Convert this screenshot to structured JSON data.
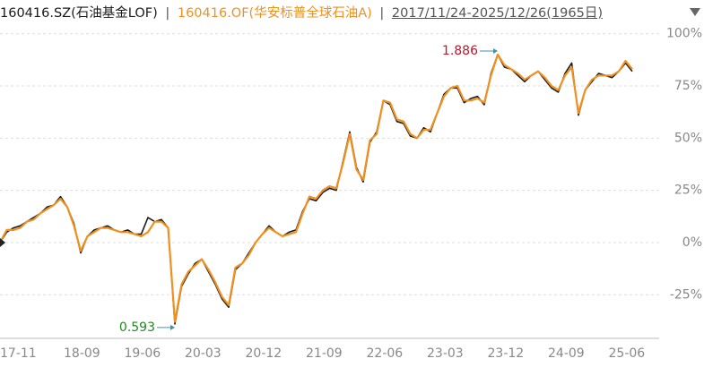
{
  "chart_data": {
    "type": "line",
    "separator": "|",
    "subtitle": "2017/11/24-2025/12/26(1965日)",
    "categories": [
      "17-11",
      null,
      null,
      null,
      null,
      null,
      null,
      null,
      null,
      null,
      "18-09",
      null,
      null,
      null,
      null,
      null,
      null,
      null,
      null,
      "19-06",
      null,
      null,
      null,
      null,
      null,
      null,
      null,
      null,
      "20-03",
      null,
      null,
      null,
      null,
      null,
      null,
      null,
      null,
      "20-12",
      null,
      null,
      null,
      null,
      null,
      null,
      null,
      null,
      "21-09",
      null,
      null,
      null,
      null,
      null,
      null,
      null,
      null,
      "22-06",
      null,
      null,
      null,
      null,
      null,
      null,
      null,
      null,
      "23-03",
      null,
      null,
      null,
      null,
      null,
      null,
      null,
      null,
      "23-12",
      null,
      null,
      null,
      null,
      null,
      null,
      null,
      null,
      "24-09",
      null,
      null,
      null,
      null,
      null,
      null,
      null,
      null,
      "25-06",
      null,
      null,
      null
    ],
    "series": [
      {
        "name": "160416.SZ(石油基金LOF)",
        "color": "#1a1a1a",
        "values": [
          0,
          5,
          7,
          8,
          10,
          12,
          14,
          17,
          18,
          22,
          17,
          9,
          -5,
          3,
          6,
          7,
          8,
          6,
          5,
          6,
          4,
          4,
          12,
          10,
          11,
          7,
          -39,
          -21,
          -15,
          -10,
          -8,
          -14,
          -20,
          -27,
          -31,
          -13,
          -10,
          -5,
          0,
          4,
          8,
          5,
          3,
          5,
          6,
          15,
          21,
          20,
          24,
          26,
          25,
          39,
          53,
          36,
          29,
          48,
          53,
          68,
          66,
          58,
          57,
          51,
          50,
          55,
          53,
          62,
          71,
          74,
          74,
          67,
          69,
          70,
          66,
          81,
          90,
          84,
          83,
          80,
          77,
          80,
          82,
          78,
          74,
          72,
          81,
          86,
          61,
          73,
          77,
          81,
          80,
          79,
          82,
          86,
          82
        ]
      },
      {
        "name": "160416.OF(华安标普全球石油A)",
        "color": "#f0901e",
        "values": [
          0,
          6,
          6,
          7,
          10,
          11,
          14,
          16,
          18,
          21,
          17,
          8,
          -4,
          3,
          5,
          7,
          7,
          6,
          5,
          5,
          4,
          3,
          5,
          10,
          10,
          7,
          -38,
          -20,
          -14,
          -11,
          -8,
          -13,
          -19,
          -26,
          -30,
          -12,
          -10,
          -6,
          0,
          4,
          7,
          5,
          3,
          4,
          5,
          14,
          22,
          21,
          25,
          27,
          26,
          38,
          52,
          35,
          30,
          49,
          52,
          68,
          67,
          59,
          58,
          52,
          50,
          54,
          54,
          62,
          70,
          74,
          75,
          68,
          68,
          69,
          67,
          80,
          90,
          85,
          83,
          81,
          78,
          80,
          82,
          79,
          75,
          73,
          80,
          84,
          62,
          73,
          78,
          80,
          80,
          80,
          82,
          87,
          83
        ]
      }
    ],
    "annotations": [
      {
        "text": "1.886",
        "color": "#c0142a"
      },
      {
        "text": "0.593",
        "color": "#1f8a1f"
      }
    ],
    "ylim": [
      -45.9,
      103.3
    ],
    "yticks": [
      {
        "value": -25,
        "label": "-25%"
      },
      {
        "value": 0,
        "label": "0%"
      },
      {
        "value": 25,
        "label": "25%"
      },
      {
        "value": 50,
        "label": "50%"
      },
      {
        "value": 75,
        "label": "75%"
      },
      {
        "value": 100,
        "label": "100%"
      }
    ],
    "grid": true
  }
}
